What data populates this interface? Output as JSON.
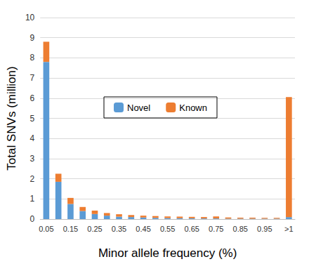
{
  "chart_data": {
    "type": "bar",
    "stacked": true,
    "grid": true,
    "legend": "center",
    "x_label": "Minor allele frequency (%)",
    "y_label": "Total SNVs (million)",
    "categories": [
      "0.05",
      null,
      "0.15",
      null,
      "0.25",
      null,
      "0.35",
      null,
      "0.45",
      null,
      "0.55",
      null,
      "0.65",
      null,
      "0.75",
      null,
      "0.85",
      null,
      "0.95",
      null,
      ">1"
    ],
    "series": [
      {
        "name": "Novel",
        "color": "#5b9bd5",
        "values": [
          7.8,
          1.85,
          0.75,
          0.4,
          0.25,
          0.17,
          0.12,
          0.1,
          0.08,
          0.06,
          0.05,
          0.04,
          0.04,
          0.03,
          0.03,
          0.02,
          0.02,
          0.02,
          0.02,
          0.02,
          0.1
        ]
      },
      {
        "name": "Known",
        "color": "#ed7d31",
        "values": [
          1.0,
          0.4,
          0.3,
          0.2,
          0.17,
          0.13,
          0.12,
          0.1,
          0.09,
          0.09,
          0.08,
          0.08,
          0.07,
          0.07,
          0.1,
          0.06,
          0.05,
          0.05,
          0.04,
          0.04,
          5.95
        ]
      }
    ],
    "ylim": [
      0,
      10
    ],
    "yticks": [
      0,
      1,
      2,
      3,
      4,
      5,
      6,
      7,
      8,
      9,
      10
    ]
  }
}
